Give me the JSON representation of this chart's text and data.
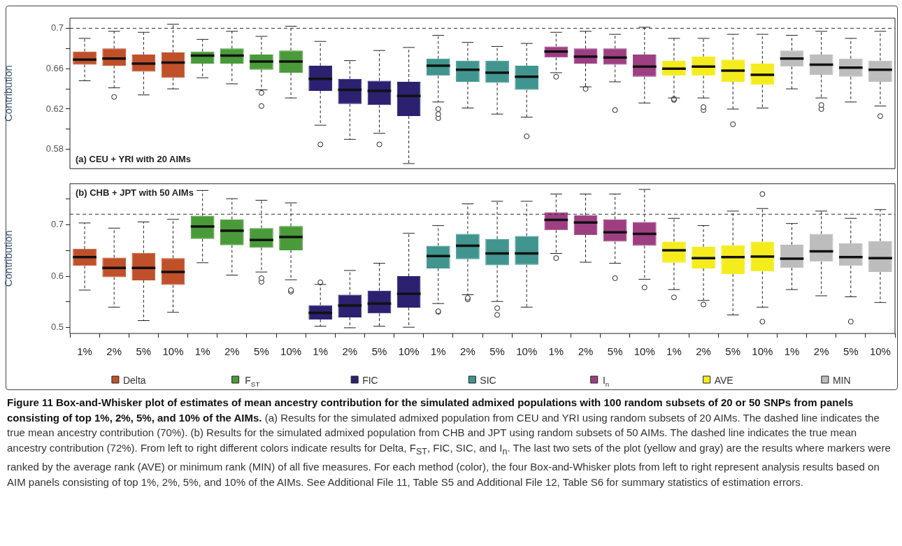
{
  "chart_data": [
    {
      "type": "box",
      "title": "(a) CEU + YRI with 20 AIMs",
      "ylabel": "Contribution",
      "marker": "circle",
      "tick_labels": "y",
      "categories": [
        null,
        null,
        null,
        null,
        null,
        null,
        null,
        null,
        null,
        null,
        null,
        null,
        null,
        null,
        null,
        null,
        null,
        null,
        null,
        null,
        null,
        null,
        null,
        null,
        null,
        null,
        null,
        null
      ],
      "ylim": [
        0.561,
        0.71
      ],
      "yticks": [
        0.58,
        {
          "value": 0.6,
          "label": null
        },
        0.62,
        {
          "value": 0.64,
          "label": null
        },
        0.66,
        {
          "value": 0.68,
          "label": null
        },
        0.7
      ],
      "ref_lines": [
        {
          "axis": "y",
          "value": 0.7,
          "line_style": "dashed"
        }
      ],
      "series": [
        {
          "color": "#c0502a",
          "boxes": [
            {
              "low": 0.648,
              "q1": 0.664,
              "median": 0.669,
              "q3": 0.677,
              "high": 0.69
            },
            {
              "low": 0.641,
              "q1": 0.663,
              "median": 0.67,
              "q3": 0.68,
              "high": 0.697,
              "outliers": [
                0.632
              ]
            },
            {
              "low": 0.634,
              "q1": 0.657,
              "median": 0.665,
              "q3": 0.674,
              "high": 0.696
            },
            {
              "low": 0.64,
              "q1": 0.651,
              "median": 0.666,
              "q3": 0.676,
              "high": 0.704
            },
            null,
            null,
            null,
            null,
            null,
            null,
            null,
            null,
            null,
            null,
            null,
            null,
            null,
            null,
            null,
            null,
            null,
            null,
            null,
            null,
            null,
            null,
            null,
            null
          ]
        },
        {
          "color": "#4a9a3a",
          "boxes": [
            null,
            null,
            null,
            null,
            {
              "low": 0.651,
              "q1": 0.665,
              "median": 0.673,
              "q3": 0.677,
              "high": 0.689
            },
            {
              "low": 0.645,
              "q1": 0.665,
              "median": 0.673,
              "q3": 0.68,
              "high": 0.697
            },
            {
              "low": 0.639,
              "q1": 0.659,
              "median": 0.667,
              "q3": 0.674,
              "high": 0.692,
              "outliers": [
                0.636,
                0.623
              ]
            },
            {
              "low": 0.631,
              "q1": 0.656,
              "median": 0.667,
              "q3": 0.678,
              "high": 0.702
            },
            null,
            null,
            null,
            null,
            null,
            null,
            null,
            null,
            null,
            null,
            null,
            null,
            null,
            null,
            null,
            null,
            null,
            null,
            null,
            null
          ]
        },
        {
          "color": "#2b2170",
          "boxes": [
            null,
            null,
            null,
            null,
            null,
            null,
            null,
            null,
            {
              "low": 0.604,
              "q1": 0.638,
              "median": 0.65,
              "q3": 0.663,
              "high": 0.687,
              "outliers": [
                0.585
              ]
            },
            {
              "low": 0.59,
              "q1": 0.625,
              "median": 0.639,
              "q3": 0.65,
              "high": 0.668
            },
            {
              "low": 0.596,
              "q1": 0.624,
              "median": 0.638,
              "q3": 0.648,
              "high": 0.678,
              "outliers": [
                0.585
              ]
            },
            {
              "low": 0.566,
              "q1": 0.613,
              "median": 0.633,
              "q3": 0.647,
              "high": 0.681
            },
            null,
            null,
            null,
            null,
            null,
            null,
            null,
            null,
            null,
            null,
            null,
            null,
            null,
            null,
            null,
            null
          ]
        },
        {
          "color": "#40968e",
          "boxes": [
            null,
            null,
            null,
            null,
            null,
            null,
            null,
            null,
            null,
            null,
            null,
            null,
            {
              "low": 0.627,
              "q1": 0.653,
              "median": 0.663,
              "q3": 0.67,
              "high": 0.693,
              "outliers": [
                0.62,
                0.615,
                0.611
              ]
            },
            {
              "low": 0.621,
              "q1": 0.647,
              "median": 0.659,
              "q3": 0.668,
              "high": 0.686
            },
            {
              "low": 0.615,
              "q1": 0.646,
              "median": 0.656,
              "q3": 0.668,
              "high": 0.682
            },
            {
              "low": 0.612,
              "q1": 0.639,
              "median": 0.652,
              "q3": 0.663,
              "high": 0.685,
              "outliers": [
                0.593
              ]
            },
            null,
            null,
            null,
            null,
            null,
            null,
            null,
            null,
            null,
            null,
            null,
            null
          ]
        },
        {
          "color": "#9e3f82",
          "boxes": [
            null,
            null,
            null,
            null,
            null,
            null,
            null,
            null,
            null,
            null,
            null,
            null,
            null,
            null,
            null,
            null,
            {
              "low": 0.656,
              "q1": 0.671,
              "median": 0.677,
              "q3": 0.682,
              "high": 0.696,
              "outliers": [
                0.652
              ]
            },
            {
              "low": 0.642,
              "q1": 0.665,
              "median": 0.672,
              "q3": 0.68,
              "high": 0.697,
              "outliers": [
                0.64
              ]
            },
            {
              "low": 0.647,
              "q1": 0.664,
              "median": 0.671,
              "q3": 0.68,
              "high": 0.694,
              "outliers": [
                0.619
              ]
            },
            {
              "low": 0.626,
              "q1": 0.652,
              "median": 0.662,
              "q3": 0.674,
              "high": 0.701
            },
            null,
            null,
            null,
            null,
            null,
            null,
            null,
            null
          ]
        },
        {
          "color": "#f5ec1e",
          "boxes": [
            null,
            null,
            null,
            null,
            null,
            null,
            null,
            null,
            null,
            null,
            null,
            null,
            null,
            null,
            null,
            null,
            null,
            null,
            null,
            null,
            {
              "low": 0.631,
              "q1": 0.653,
              "median": 0.66,
              "q3": 0.668,
              "high": 0.69,
              "outliers": [
                0.63,
                0.629
              ]
            },
            {
              "low": 0.631,
              "q1": 0.653,
              "median": 0.662,
              "q3": 0.672,
              "high": 0.69,
              "outliers": [
                0.622,
                0.619
              ]
            },
            {
              "low": 0.62,
              "q1": 0.647,
              "median": 0.658,
              "q3": 0.669,
              "high": 0.694,
              "outliers": [
                0.605
              ]
            },
            {
              "low": 0.621,
              "q1": 0.644,
              "median": 0.654,
              "q3": 0.665,
              "high": 0.694
            },
            null,
            null,
            null,
            null
          ]
        },
        {
          "color": "#bdbdbd",
          "boxes": [
            null,
            null,
            null,
            null,
            null,
            null,
            null,
            null,
            null,
            null,
            null,
            null,
            null,
            null,
            null,
            null,
            null,
            null,
            null,
            null,
            null,
            null,
            null,
            null,
            {
              "low": 0.64,
              "q1": 0.662,
              "median": 0.67,
              "q3": 0.678,
              "high": 0.693
            },
            {
              "low": 0.631,
              "q1": 0.654,
              "median": 0.664,
              "q3": 0.674,
              "high": 0.697,
              "outliers": [
                0.624,
                0.62
              ]
            },
            {
              "low": 0.627,
              "q1": 0.652,
              "median": 0.661,
              "q3": 0.67,
              "high": 0.69
            },
            {
              "low": 0.623,
              "q1": 0.647,
              "median": 0.659,
              "q3": 0.668,
              "high": 0.697,
              "outliers": [
                0.613
              ]
            }
          ]
        }
      ]
    },
    {
      "type": "box",
      "title": "(b) CHB + JPT with 50 AIMs",
      "ylabel": "Contribution",
      "marker": "circle",
      "legend": "bottom",
      "categories": [
        "1%",
        "2%",
        "5%",
        "10%",
        "1%",
        "2%",
        "5%",
        "10%",
        "1%",
        "2%",
        "5%",
        "10%",
        "1%",
        "2%",
        "5%",
        "10%",
        "1%",
        "2%",
        "5%",
        "10%",
        "1%",
        "2%",
        "5%",
        "10%",
        "1%",
        "2%",
        "5%",
        "10%"
      ],
      "ylim": [
        0.489,
        0.779
      ],
      "yticks": [
        0.5,
        {
          "value": 0.55,
          "label": null
        },
        0.6,
        {
          "value": 0.65,
          "label": null
        },
        0.7,
        {
          "value": 0.75,
          "label": null
        }
      ],
      "ref_lines": [
        {
          "axis": "y",
          "value": 0.72,
          "line_style": "dashed"
        }
      ],
      "series": [
        {
          "name": "Delta",
          "color": "#c0502a",
          "boxes": [
            {
              "low": 0.573,
              "q1": 0.62,
              "median": 0.637,
              "q3": 0.653,
              "high": 0.703
            },
            {
              "low": 0.54,
              "q1": 0.598,
              "median": 0.616,
              "q3": 0.636,
              "high": 0.693
            },
            {
              "low": 0.514,
              "q1": 0.592,
              "median": 0.616,
              "q3": 0.645,
              "high": 0.705
            },
            {
              "low": 0.53,
              "q1": 0.583,
              "median": 0.608,
              "q3": 0.635,
              "high": 0.71
            },
            null,
            null,
            null,
            null,
            null,
            null,
            null,
            null,
            null,
            null,
            null,
            null,
            null,
            null,
            null,
            null,
            null,
            null,
            null,
            null,
            null,
            null,
            null,
            null
          ]
        },
        {
          "name": "F$_{ST}$",
          "color": "#4a9a3a",
          "boxes": [
            null,
            null,
            null,
            null,
            {
              "low": 0.626,
              "q1": 0.672,
              "median": 0.696,
              "q3": 0.717,
              "high": 0.766
            },
            {
              "low": 0.602,
              "q1": 0.66,
              "median": 0.688,
              "q3": 0.71,
              "high": 0.75
            },
            {
              "low": 0.608,
              "q1": 0.655,
              "median": 0.67,
              "q3": 0.693,
              "high": 0.747,
              "outliers": [
                0.596,
                0.589
              ]
            },
            {
              "low": 0.593,
              "q1": 0.65,
              "median": 0.676,
              "q3": 0.697,
              "high": 0.742,
              "outliers": [
                0.573,
                0.57
              ]
            },
            null,
            null,
            null,
            null,
            null,
            null,
            null,
            null,
            null,
            null,
            null,
            null,
            null,
            null,
            null,
            null,
            null,
            null,
            null,
            null
          ]
        },
        {
          "name": "FIC",
          "color": "#2b2170",
          "boxes": [
            null,
            null,
            null,
            null,
            null,
            null,
            null,
            null,
            {
              "low": 0.503,
              "q1": 0.516,
              "median": 0.529,
              "q3": 0.544,
              "high": 0.584,
              "outliers": [
                0.588
              ]
            },
            {
              "low": 0.5,
              "q1": 0.52,
              "median": 0.543,
              "q3": 0.564,
              "high": 0.611
            },
            {
              "low": 0.503,
              "q1": 0.528,
              "median": 0.547,
              "q3": 0.572,
              "high": 0.625
            },
            {
              "low": 0.501,
              "q1": 0.539,
              "median": 0.566,
              "q3": 0.6,
              "high": 0.683
            },
            null,
            null,
            null,
            null,
            null,
            null,
            null,
            null,
            null,
            null,
            null,
            null,
            null,
            null,
            null,
            null
          ]
        },
        {
          "name": "SIC",
          "color": "#40968e",
          "boxes": [
            null,
            null,
            null,
            null,
            null,
            null,
            null,
            null,
            null,
            null,
            null,
            null,
            {
              "low": 0.547,
              "q1": 0.615,
              "median": 0.639,
              "q3": 0.659,
              "high": 0.698,
              "outliers": [
                0.532,
                0.531
              ]
            },
            {
              "low": 0.564,
              "q1": 0.633,
              "median": 0.659,
              "q3": 0.682,
              "high": 0.74,
              "outliers": [
                0.558,
                0.555
              ]
            },
            {
              "low": 0.551,
              "q1": 0.621,
              "median": 0.644,
              "q3": 0.672,
              "high": 0.745,
              "outliers": [
                0.538,
                0.525
              ]
            },
            {
              "low": 0.54,
              "q1": 0.622,
              "median": 0.644,
              "q3": 0.678,
              "high": 0.745
            },
            null,
            null,
            null,
            null,
            null,
            null,
            null,
            null,
            null,
            null,
            null,
            null
          ]
        },
        {
          "name": "I$_{n}$",
          "color": "#9e3f82",
          "boxes": [
            null,
            null,
            null,
            null,
            null,
            null,
            null,
            null,
            null,
            null,
            null,
            null,
            null,
            null,
            null,
            null,
            {
              "low": 0.644,
              "q1": 0.689,
              "median": 0.709,
              "q3": 0.724,
              "high": 0.759,
              "outliers": [
                0.635
              ]
            },
            {
              "low": 0.627,
              "q1": 0.68,
              "median": 0.704,
              "q3": 0.718,
              "high": 0.759
            },
            {
              "low": 0.625,
              "q1": 0.667,
              "median": 0.685,
              "q3": 0.71,
              "high": 0.759,
              "outliers": [
                0.596
              ]
            },
            {
              "low": 0.594,
              "q1": 0.659,
              "median": 0.682,
              "q3": 0.705,
              "high": 0.768,
              "outliers": [
                0.578
              ]
            },
            null,
            null,
            null,
            null,
            null,
            null,
            null,
            null
          ]
        },
        {
          "name": "AVE",
          "color": "#f5ec1e",
          "boxes": [
            null,
            null,
            null,
            null,
            null,
            null,
            null,
            null,
            null,
            null,
            null,
            null,
            null,
            null,
            null,
            null,
            null,
            null,
            null,
            null,
            {
              "low": 0.574,
              "q1": 0.626,
              "median": 0.65,
              "q3": 0.667,
              "high": 0.712,
              "outliers": [
                0.559
              ]
            },
            {
              "low": 0.553,
              "q1": 0.615,
              "median": 0.635,
              "q3": 0.657,
              "high": 0.698,
              "outliers": [
                0.545
              ]
            },
            {
              "low": 0.525,
              "q1": 0.604,
              "median": 0.637,
              "q3": 0.66,
              "high": 0.726
            },
            {
              "low": 0.54,
              "q1": 0.609,
              "median": 0.638,
              "q3": 0.667,
              "high": 0.731,
              "outliers": [
                0.759,
                0.512
              ]
            },
            null,
            null,
            null,
            null
          ]
        },
        {
          "name": "MIN",
          "color": "#bdbdbd",
          "boxes": [
            null,
            null,
            null,
            null,
            null,
            null,
            null,
            null,
            null,
            null,
            null,
            null,
            null,
            null,
            null,
            null,
            null,
            null,
            null,
            null,
            null,
            null,
            null,
            null,
            {
              "low": 0.574,
              "q1": 0.616,
              "median": 0.634,
              "q3": 0.661,
              "high": 0.702
            },
            {
              "low": 0.562,
              "q1": 0.628,
              "median": 0.648,
              "q3": 0.682,
              "high": 0.726
            },
            {
              "low": 0.56,
              "q1": 0.62,
              "median": 0.637,
              "q3": 0.664,
              "high": 0.712,
              "outliers": [
                0.512
              ]
            },
            {
              "low": 0.549,
              "q1": 0.608,
              "median": 0.635,
              "q3": 0.668,
              "high": 0.729
            }
          ]
        }
      ],
      "annotations": [
        "Figure 11 Box-and-Whisker plot of estimates of mean ancestry contribution for the simulated admixed populations with 100 random subsets of 20 or 50 SNPs from panels consisting of top 1%, 2%, 5%, and 10% of the AIMs.",
        "(a) Results for the simulated admixed population from CEU and YRI using random subsets of 20 AIMs. The dashed line indicates the true mean ancestry contribution (70%). (b) Results for the simulated admixed population from CHB and JPT using random subsets of 50 AIMs. The dashed line indicates the true mean ancestry contribution (72%). From left to right different colors indicate results for Delta, F$_{ST}$, FIC, SIC, and I$_{n}$. The last two sets of the plot (yellow and gray) are the results where markers were ranked by the average rank (AVE) or minimum rank (MIN) of all five measures. For each method (color), the four Box-and-Whisker plots from left to right represent analysis results based on AIM panels consisting of top 1%, 2%, 5%, and 10% of the AIMs. See Additional File 11, Table S5 and Additional File 12, Table S6 for summary statistics of estimation errors."
      ]
    }
  ]
}
